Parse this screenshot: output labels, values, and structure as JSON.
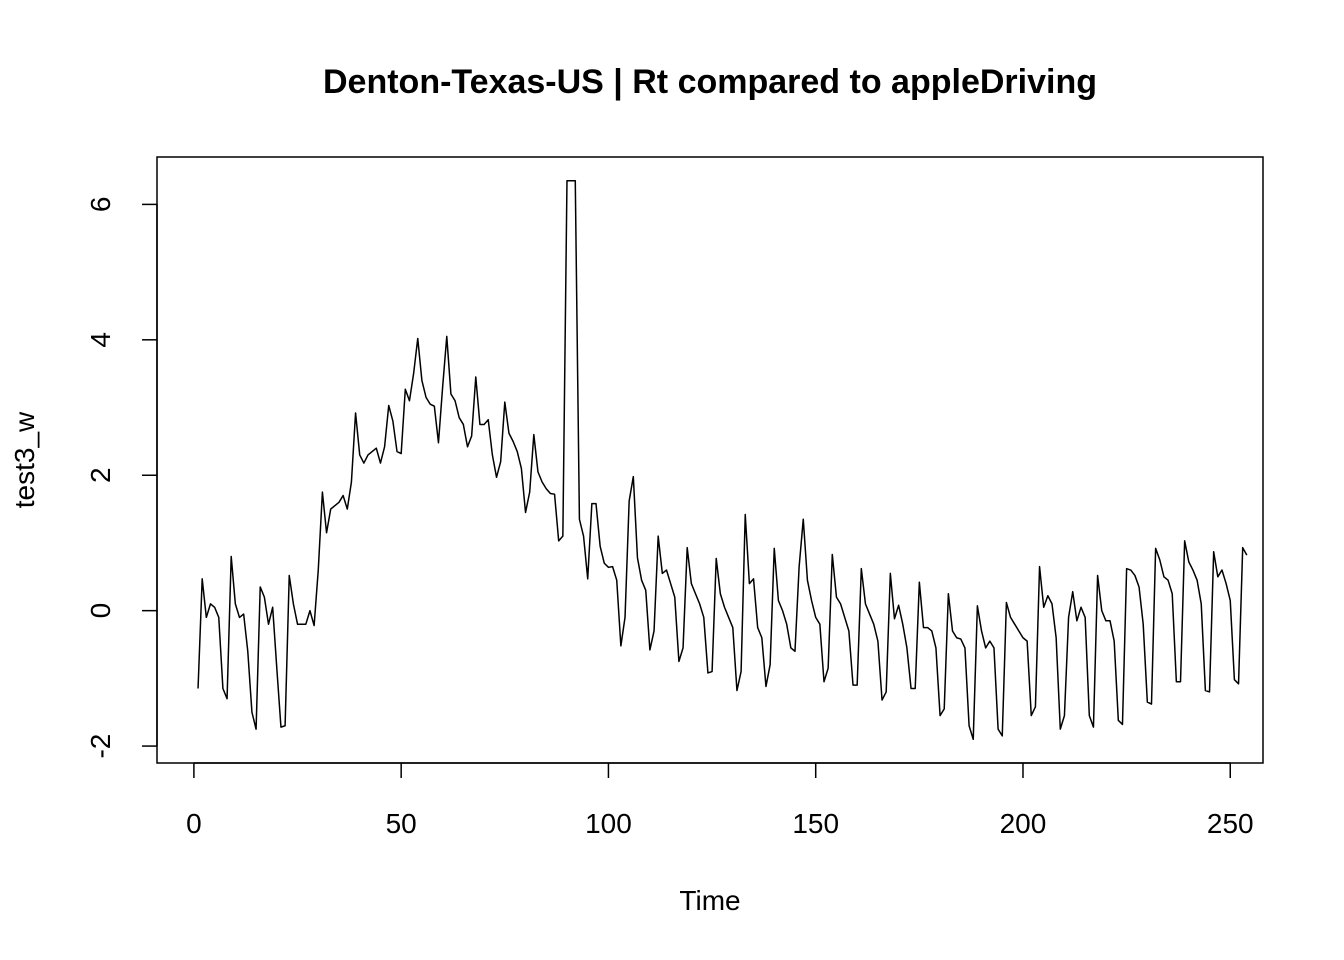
{
  "chart_data": {
    "type": "line",
    "title": "Denton-Texas-US | Rt compared to appleDriving",
    "xlabel": "Time",
    "ylabel": "test3_w",
    "xlim": [
      -8.9,
      257.9
    ],
    "ylim": [
      -2.25,
      6.7
    ],
    "x_ticks": [
      0,
      50,
      100,
      150,
      200,
      250
    ],
    "x_tick_labels": [
      "0",
      "50",
      "100",
      "150",
      "200",
      "250"
    ],
    "y_ticks": [
      -2,
      0,
      2,
      4,
      6
    ],
    "y_tick_labels": [
      "-2",
      "0",
      "2",
      "4",
      "6"
    ],
    "grid": false,
    "legend": "none",
    "line_color": "#000000",
    "series": [
      {
        "x_start": 1,
        "values": [
          -1.15,
          0.47,
          -0.1,
          0.1,
          0.05,
          -0.1,
          -1.15,
          -1.3,
          0.8,
          0.1,
          -0.1,
          -0.05,
          -0.6,
          -1.5,
          -1.75,
          0.35,
          0.2,
          -0.2,
          0.05,
          -0.85,
          -1.72,
          -1.7,
          0.52,
          0.1,
          -0.2,
          -0.2,
          -0.2,
          0.0,
          -0.22,
          0.6,
          1.75,
          1.15,
          1.5,
          1.55,
          1.6,
          1.7,
          1.5,
          1.9,
          2.92,
          2.3,
          2.18,
          2.3,
          2.35,
          2.4,
          2.18,
          2.42,
          3.03,
          2.8,
          2.35,
          2.32,
          3.27,
          3.1,
          3.5,
          4.02,
          3.4,
          3.15,
          3.05,
          3.02,
          2.48,
          3.3,
          4.05,
          3.2,
          3.1,
          2.85,
          2.75,
          2.42,
          2.58,
          3.45,
          2.75,
          2.75,
          2.82,
          2.3,
          1.97,
          2.2,
          3.08,
          2.62,
          2.5,
          2.35,
          2.1,
          1.45,
          1.75,
          2.6,
          2.05,
          1.9,
          1.8,
          1.73,
          1.72,
          1.03,
          1.1,
          6.35,
          6.35,
          6.35,
          1.35,
          1.1,
          0.47,
          1.58,
          1.58,
          0.95,
          0.7,
          0.64,
          0.65,
          0.45,
          -0.52,
          -0.1,
          1.62,
          1.98,
          0.78,
          0.45,
          0.3,
          -0.58,
          -0.3,
          1.1,
          0.55,
          0.6,
          0.4,
          0.2,
          -0.75,
          -0.55,
          0.93,
          0.4,
          0.25,
          0.1,
          -0.1,
          -0.92,
          -0.9,
          0.77,
          0.25,
          0.05,
          -0.1,
          -0.25,
          -1.18,
          -0.9,
          1.42,
          0.4,
          0.47,
          -0.25,
          -0.4,
          -1.12,
          -0.8,
          0.92,
          0.15,
          0.0,
          -0.2,
          -0.55,
          -0.6,
          0.65,
          1.35,
          0.45,
          0.15,
          -0.1,
          -0.2,
          -1.05,
          -0.85,
          0.83,
          0.2,
          0.1,
          -0.1,
          -0.3,
          -1.1,
          -1.1,
          0.62,
          0.1,
          -0.05,
          -0.2,
          -0.45,
          -1.32,
          -1.2,
          0.55,
          -0.12,
          0.08,
          -0.2,
          -0.55,
          -1.15,
          -1.15,
          0.42,
          -0.25,
          -0.25,
          -0.3,
          -0.55,
          -1.55,
          -1.45,
          0.25,
          -0.3,
          -0.4,
          -0.42,
          -0.55,
          -1.7,
          -1.9,
          0.07,
          -0.3,
          -0.55,
          -0.45,
          -0.55,
          -1.75,
          -1.85,
          0.12,
          -0.1,
          -0.2,
          -0.3,
          -0.4,
          -0.45,
          -1.55,
          -1.42,
          0.65,
          0.05,
          0.22,
          0.1,
          -0.4,
          -1.75,
          -1.55,
          -0.1,
          0.28,
          -0.15,
          0.05,
          -0.1,
          -1.55,
          -1.72,
          0.52,
          0.0,
          -0.15,
          -0.15,
          -0.45,
          -1.62,
          -1.68,
          0.62,
          0.6,
          0.52,
          0.35,
          -0.2,
          -1.35,
          -1.38,
          0.92,
          0.75,
          0.5,
          0.45,
          0.25,
          -1.05,
          -1.05,
          1.03,
          0.72,
          0.6,
          0.45,
          0.1,
          -1.18,
          -1.2,
          0.87,
          0.5,
          0.6,
          0.4,
          0.15,
          -1.02,
          -1.08,
          0.93,
          0.82
        ]
      }
    ]
  }
}
